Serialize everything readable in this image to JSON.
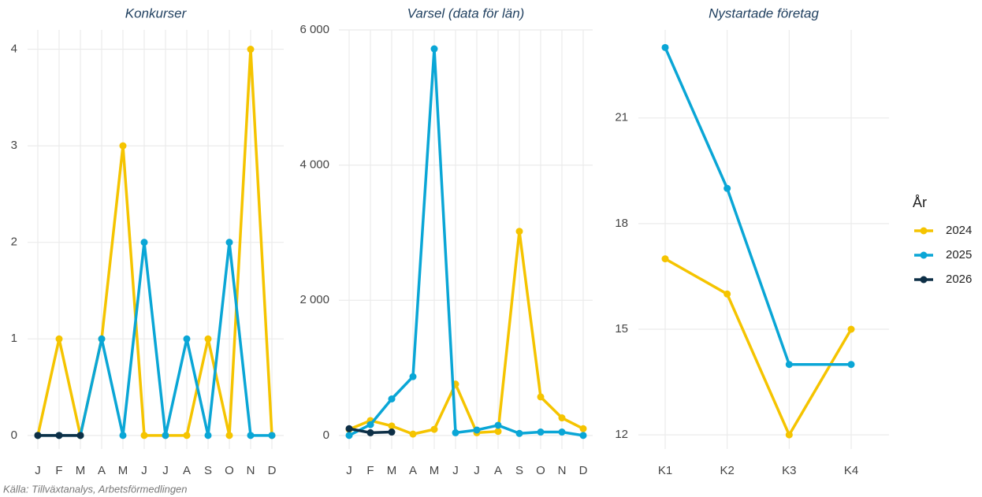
{
  "chart_data": [
    {
      "type": "line",
      "title": "Konkurser",
      "categories": [
        "J",
        "F",
        "M",
        "A",
        "M",
        "J",
        "J",
        "A",
        "S",
        "O",
        "N",
        "D"
      ],
      "series": [
        {
          "name": "2024",
          "color": "#f5c400",
          "values": [
            0,
            1,
            0,
            1,
            3,
            0,
            0,
            0,
            1,
            0,
            4,
            0
          ]
        },
        {
          "name": "2025",
          "color": "#0aa6d6",
          "values": [
            0,
            0,
            0,
            1,
            0,
            2,
            0,
            1,
            0,
            2,
            0,
            0
          ]
        },
        {
          "name": "2026",
          "color": "#0d2f46",
          "values": [
            0,
            0,
            0,
            null,
            null,
            null,
            null,
            null,
            null,
            null,
            null,
            null
          ]
        }
      ],
      "ylim": [
        -0.14,
        4.2
      ],
      "yticks": [
        0,
        1,
        2,
        3,
        4
      ],
      "grid": true
    },
    {
      "type": "line",
      "title": "Varsel (data för län)",
      "categories": [
        "J",
        "F",
        "M",
        "A",
        "M",
        "J",
        "J",
        "A",
        "S",
        "O",
        "N",
        "D"
      ],
      "series": [
        {
          "name": "2024",
          "color": "#f5c400",
          "values": [
            90,
            220,
            140,
            20,
            90,
            760,
            40,
            60,
            3020,
            570,
            260,
            100
          ]
        },
        {
          "name": "2025",
          "color": "#0aa6d6",
          "values": [
            0,
            160,
            540,
            870,
            5720,
            40,
            80,
            150,
            30,
            50,
            50,
            0
          ]
        },
        {
          "name": "2026",
          "color": "#0d2f46",
          "values": [
            100,
            40,
            50,
            null,
            null,
            null,
            null,
            null,
            null,
            null,
            null,
            null
          ]
        }
      ],
      "ylim": [
        -200,
        6000
      ],
      "yticks": [
        0,
        {
          "value": 2000,
          "label": "2 000"
        },
        {
          "value": 4000,
          "label": "4 000"
        },
        {
          "value": 6000,
          "label": "6 000"
        }
      ],
      "grid": true
    },
    {
      "type": "line",
      "title": "Nystartade företag",
      "categories": [
        "K1",
        "K2",
        "K3",
        "K4"
      ],
      "series": [
        {
          "name": "2024",
          "color": "#f5c400",
          "values": [
            17,
            16,
            12,
            15
          ]
        },
        {
          "name": "2025",
          "color": "#0aa6d6",
          "values": [
            23,
            19,
            14,
            14
          ]
        }
      ],
      "ylim": [
        11.6,
        23.5
      ],
      "yticks": [
        12,
        15,
        18,
        21
      ],
      "grid": true
    }
  ],
  "legend_title": "År",
  "source": "Källa: Tillväxtanalys, Arbetsförmedlingen"
}
